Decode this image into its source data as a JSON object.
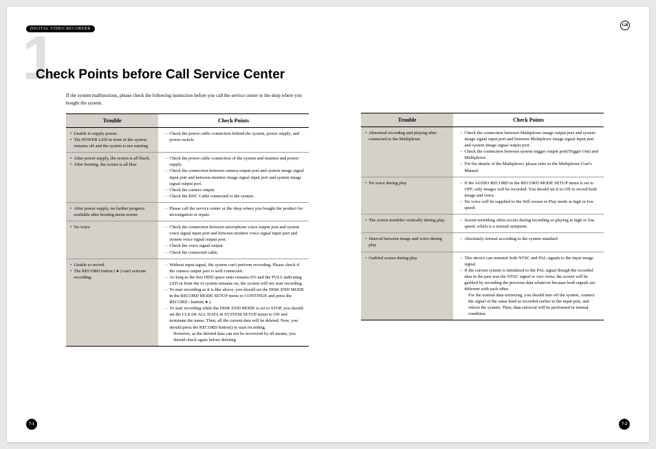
{
  "header_badge": "DIGITAL VIDEO RECORDER",
  "gb_label": "GB",
  "chapter_number": "1",
  "title": "Check Points before Call Service Center",
  "intro": "If the system malfunctions, please check the following instruction before you call the service center or the shop where you bought the system.",
  "headers": {
    "trouble": "Trouble",
    "checkpoints": "Check Points"
  },
  "page_left": "7-1",
  "page_right": "7-2",
  "left_rows": [
    {
      "trouble": [
        "Unable to supply power.",
        "The POWER LED in front of the system remains off and the system is not running"
      ],
      "check": [
        "Check the power cable connection behind the system, power supply, and power switch."
      ]
    },
    {
      "trouble": [
        "After power supply, the screen is all black.",
        "After booting, the screen is all blue"
      ],
      "check": [
        "Check the power cable connection of the system and monitor and power supply.",
        "Check the connection between camera output port and system image signal input port and between monitor image signal input port and system image signal output port.",
        "Check the camera output.",
        "Check the BNC Cable connected to the system."
      ]
    },
    {
      "trouble": [
        "After power supply, no further progress available after booting menu screen"
      ],
      "check": [
        "Please call the service center or the shop where you bought the product for investigation or repair."
      ]
    },
    {
      "trouble": [
        "No voice"
      ],
      "check": [
        "Check the connection between microphone voice output port and system voice signal input port and between monitor voice signal input port and system voice signal output port.",
        "Check the voice signal output.",
        "Check the connected cable."
      ]
    },
    {
      "trouble": [
        "Unable to record.",
        "The RECORD button ( ● ) can't activate recording."
      ],
      "check": [
        "Without input signal, the system can't perform recording. Please check if the camera output port is well connected.",
        "As long as the free HDD space ratio remains 0% and the FULL indicating LED in front the of system remains on, the system will not start recording.",
        "To start recording as it is like above, you should set the DISK END MODE in the RECORD MODE SETUP menu to CONTINUE and press the RECORD / button( ● ).",
        "To start recording while the DISK END MODE is set to STOP, you should set the CLEAR ALL DATA in SYSTEM SETUP menu to ON and terminate the menu. Then, all the current data will be deleted. Now, you should press the RECORD button() to start recording."
      ],
      "check_note": "However, as the deleted data can not be recovered by all means, you should check again before deleting."
    }
  ],
  "right_rows": [
    {
      "trouble": [
        "Abnormal recording and playing after connected to the Multiplexer"
      ],
      "check": [
        "Check the connection between Multiplexer image output port and system image signal input port and between Multiplexer image signal input port and system image signal output port.",
        "Check the connection between system trigger output port(Trigger Out) and Multiplexer.",
        "For the details of the Multiplexer, please refer to the Multiplexer User's Manual."
      ]
    },
    {
      "trouble": [
        "No voice during play"
      ],
      "check": [
        "If the AUDIO RECORD in the RECORD MODE SETUP menu is set to OFF, only images will be recorded. You should set it to ON to record both image and voice.",
        "No voice will be supplied to the Still screen or Play mode at high or low speed."
      ]
    },
    {
      "trouble": [
        "The screen trembles vertically during play."
      ],
      "check": [
        "Screen trembling often occurs during recording or playing at high or low speed, which is a normal symptom."
      ]
    },
    {
      "trouble": [
        "Interval between image and voice during play"
      ],
      "check": [
        "Absolutely normal according to the system standard"
      ]
    },
    {
      "trouble": [
        "Garbled screen during play"
      ],
      "check": [
        "This device can transmit both NTSC and PAL signals to the input image signal.",
        "If the current system is initialized to the PAL signal though the recorded data in the past was the NTSC signal or vice versa, the screen will be garbled by recording the previous data whatever because both signals are different with each other."
      ],
      "check_note": "For the normal data retrieving, you should turn off the system, connect the signal of the same kind as recorded earlier to the input port, and reboot the system. Then, data retrieval will be performed in normal condition."
    }
  ]
}
